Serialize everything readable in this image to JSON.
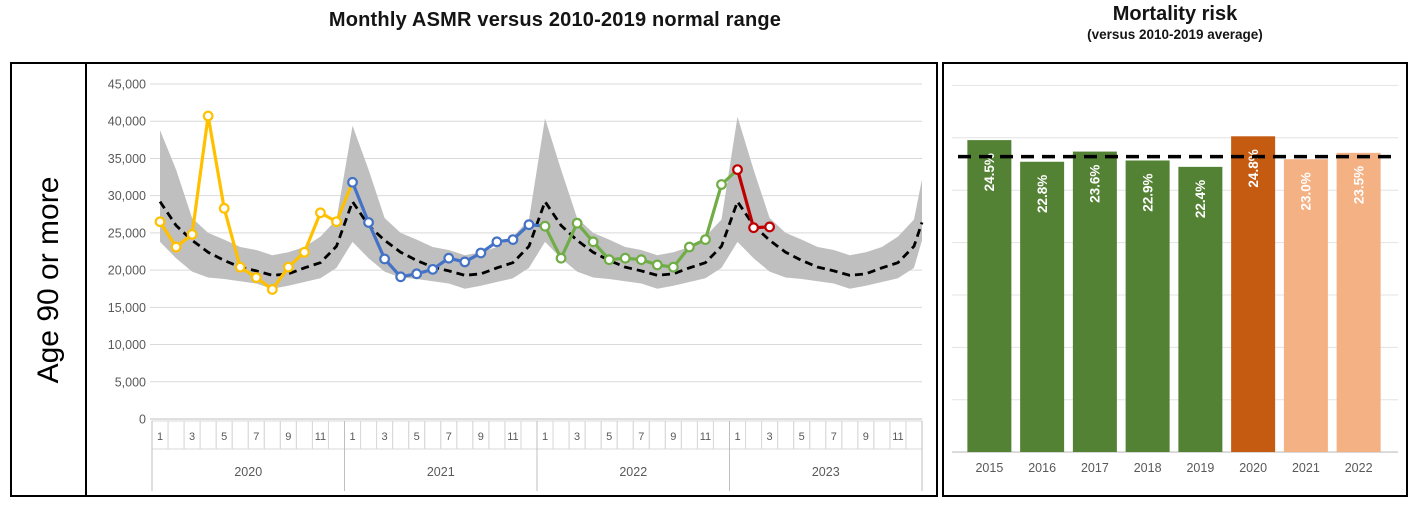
{
  "page": {
    "background": "#FFFFFF"
  },
  "left_panel": {
    "title": "Monthly ASMR versus 2010-2019 normal range",
    "row_label": "Age 90 or more"
  },
  "right_panel": {
    "title": "Mortality risk",
    "subtitle": "(versus 2010-2019 average)"
  },
  "chart_data": [
    {
      "type": "line",
      "title": "Monthly ASMR versus 2010-2019 normal range",
      "row_label": "Age 90 or more",
      "grid": true,
      "y_axis": {
        "tick_values": [
          0,
          5000,
          10000,
          15000,
          20000,
          25000,
          30000,
          35000,
          40000,
          45000
        ],
        "tick_labels": [
          "0",
          "5,000",
          "10,000",
          "15,000",
          "20,000",
          "25,000",
          "30,000",
          "35,000",
          "40,000",
          "45,000"
        ],
        "ylim": [
          0,
          45000
        ]
      },
      "x_axis": {
        "years": [
          "2020",
          "2021",
          "2022",
          "2023"
        ],
        "months_per_year": 12,
        "month_tick_labels": [
          "1",
          "3",
          "5",
          "7",
          "9",
          "11"
        ]
      },
      "normal_range": {
        "name": "2010-2019 normal range",
        "color": "#BFBFBF",
        "upper": [
          38800,
          33500,
          27000,
          25000,
          24100,
          23100,
          22700,
          22000,
          22400,
          23100,
          24500,
          26800,
          39400,
          33500,
          27000,
          25000,
          24100,
          23100,
          22700,
          22000,
          22400,
          23100,
          24500,
          26800,
          40400,
          33500,
          27000,
          25000,
          24100,
          23100,
          22700,
          22000,
          22400,
          23100,
          24500,
          26800,
          40600,
          33500,
          27000,
          25000,
          24100,
          23100,
          22700,
          22000,
          22400,
          23100,
          24500,
          26800
        ],
        "lower": [
          23800,
          21600,
          19800,
          19000,
          18800,
          18500,
          18200,
          17500,
          17900,
          18400,
          18900,
          20300,
          23800,
          21600,
          19800,
          19000,
          18800,
          18500,
          18200,
          17500,
          17900,
          18400,
          18900,
          20300,
          23800,
          21600,
          19800,
          19000,
          18800,
          18500,
          18200,
          17500,
          17900,
          18400,
          18900,
          20300,
          23800,
          21600,
          19800,
          19000,
          18800,
          18500,
          18200,
          17500,
          17900,
          18400,
          18900,
          20300
        ],
        "edge_upper": 32200,
        "edge_lower": 24000
      },
      "average_2010_2019": {
        "name": "2010-2019 average",
        "style": "dashed",
        "color": "#000000",
        "values": [
          29200,
          26000,
          24000,
          22400,
          21300,
          20400,
          19900,
          19300,
          19500,
          20300,
          21000,
          23200,
          29200,
          26000,
          24000,
          22400,
          21300,
          20400,
          19900,
          19300,
          19500,
          20300,
          21000,
          23200,
          29200,
          26000,
          24000,
          22400,
          21300,
          20400,
          19900,
          19300,
          19500,
          20300,
          21000,
          23200,
          29200,
          26000,
          24000,
          22400,
          21300,
          20400,
          19900,
          19300,
          19500,
          20300,
          21000,
          23200
        ],
        "edge_value": 26400
      },
      "series": [
        {
          "name": "2020",
          "color": "#FFC000",
          "values": [
            26500,
            23100,
            24800,
            40700,
            28300,
            20400,
            19000,
            17400,
            20400,
            22400,
            27700,
            26500
          ]
        },
        {
          "name": "2021",
          "color": "#4472C4",
          "values": [
            31800,
            26400,
            21500,
            19100,
            19500,
            20100,
            21600,
            21100,
            22300,
            23800,
            24100,
            26100
          ]
        },
        {
          "name": "2022",
          "color": "#70AD47",
          "values": [
            25900,
            21600,
            26300,
            23800,
            21400,
            21600,
            21400,
            20700,
            20400,
            23100,
            24100,
            31500
          ]
        },
        {
          "name": "2023",
          "color": "#C00000",
          "values": [
            33500,
            25700,
            25800
          ]
        }
      ]
    },
    {
      "type": "bar",
      "title": "Mortality risk",
      "subtitle": "(versus 2010-2019 average)",
      "categories": [
        "2015",
        "2016",
        "2017",
        "2018",
        "2019",
        "2020",
        "2021",
        "2022"
      ],
      "values": [
        24.5,
        22.8,
        23.6,
        22.9,
        22.4,
        24.8,
        23.0,
        23.5
      ],
      "bar_labels": [
        "24.5%",
        "22.8%",
        "23.6%",
        "22.9%",
        "22.4%",
        "24.8%",
        "23.0%",
        "23.5%"
      ],
      "bar_colors": [
        "#548235",
        "#548235",
        "#548235",
        "#548235",
        "#548235",
        "#C55A11",
        "#F4B183",
        "#F4B183"
      ],
      "label_color": "#FFFFFF",
      "reference_line": {
        "value": 23.2,
        "meaning": "2010-2019 average",
        "color": "#000000",
        "style": "dashed"
      },
      "ylim": [
        0,
        29
      ],
      "grid": true
    }
  ]
}
